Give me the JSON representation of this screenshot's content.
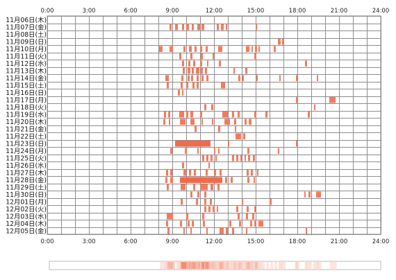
{
  "chart_data": {
    "type": "heatmap",
    "title": "",
    "xlabel": "",
    "ylabel": "",
    "x_ticks": [
      "0:00",
      "3:00",
      "6:00",
      "9:00",
      "12:00",
      "15:00",
      "18:00",
      "21:00",
      "24:00"
    ],
    "x_range_hours": [
      0,
      24
    ],
    "grid": true,
    "colors": {
      "activity": "#f47a5c",
      "activity_dense": "#f26a4c",
      "grid": "#8c8c8c",
      "summary_border": "#bbbbbb"
    },
    "days": [
      {
        "label": "11月06日(木)",
        "sessions": []
      },
      {
        "label": "11月07日(金)",
        "sessions": [
          [
            8.8,
            8.95
          ],
          [
            9.2,
            9.4
          ],
          [
            9.7,
            9.85
          ],
          [
            10.0,
            10.2
          ],
          [
            10.4,
            10.55
          ],
          [
            10.8,
            11.0
          ],
          [
            11.1,
            11.3
          ],
          [
            12.2,
            12.35
          ],
          [
            12.5,
            12.7
          ],
          [
            12.85,
            12.95
          ],
          [
            15.0,
            15.1
          ]
        ]
      },
      {
        "label": "11月08日(土)",
        "sessions": []
      },
      {
        "label": "11月09日(日)",
        "sessions": [
          [
            16.6,
            16.8
          ],
          [
            16.9,
            17.05
          ]
        ]
      },
      {
        "label": "11月10日(月)",
        "sessions": [
          [
            8.05,
            8.3
          ],
          [
            8.8,
            9.05
          ],
          [
            9.8,
            9.95
          ],
          [
            10.2,
            10.4
          ],
          [
            10.6,
            10.75
          ],
          [
            11.0,
            11.15
          ],
          [
            11.4,
            11.55
          ],
          [
            12.3,
            12.6
          ],
          [
            14.3,
            14.55
          ],
          [
            14.7,
            14.8
          ],
          [
            14.95,
            15.1
          ],
          [
            15.2,
            15.3
          ],
          [
            16.3,
            16.45
          ]
        ]
      },
      {
        "label": "11月11日(火)",
        "sessions": [
          [
            9.5,
            9.65
          ],
          [
            10.3,
            10.45
          ],
          [
            11.05,
            11.2
          ],
          [
            11.9,
            12.0
          ],
          [
            14.9,
            15.05
          ]
        ]
      },
      {
        "label": "11月12日(水)",
        "sessions": [
          [
            9.7,
            9.85
          ],
          [
            10.15,
            10.3
          ],
          [
            10.5,
            10.65
          ],
          [
            11.0,
            11.15
          ],
          [
            11.5,
            11.6
          ],
          [
            12.35,
            12.5
          ],
          [
            18.55,
            18.7
          ]
        ]
      },
      {
        "label": "11月13日(木)",
        "sessions": [
          [
            9.75,
            9.9
          ],
          [
            10.1,
            10.3
          ],
          [
            10.4,
            10.55
          ],
          [
            10.7,
            10.95
          ],
          [
            11.05,
            11.2
          ],
          [
            11.35,
            11.5
          ],
          [
            13.4,
            13.5
          ],
          [
            14.25,
            14.4
          ]
        ]
      },
      {
        "label": "11月14日(金)",
        "sessions": [
          [
            8.5,
            8.75
          ],
          [
            9.65,
            9.8
          ],
          [
            10.1,
            10.25
          ],
          [
            10.35,
            10.5
          ],
          [
            10.75,
            10.9
          ],
          [
            11.1,
            11.25
          ],
          [
            11.45,
            11.6
          ],
          [
            13.75,
            13.9
          ],
          [
            14.05,
            14.15
          ],
          [
            15.05,
            15.15
          ],
          [
            16.7,
            16.8
          ],
          [
            17.9,
            18.0
          ],
          [
            19.4,
            19.5
          ]
        ]
      },
      {
        "label": "11月15日(土)",
        "sessions": [
          [
            8.6,
            8.75
          ],
          [
            9.6,
            9.75
          ],
          [
            10.0,
            10.15
          ],
          [
            10.45,
            10.6
          ],
          [
            10.75,
            10.9
          ],
          [
            12.5,
            12.8
          ]
        ]
      },
      {
        "label": "11月16日(日)",
        "sessions": [
          [
            9.4,
            9.55
          ],
          [
            9.7,
            9.8
          ]
        ]
      },
      {
        "label": "11月17日(月)",
        "sessions": [
          [
            17.9,
            18.05
          ],
          [
            20.3,
            20.75
          ]
        ]
      },
      {
        "label": "11月18日(火)",
        "sessions": [
          [
            11.3,
            11.45
          ],
          [
            11.8,
            11.95
          ],
          [
            19.2,
            19.3
          ]
        ]
      },
      {
        "label": "11月19日(水)",
        "sessions": [
          [
            8.4,
            8.55
          ],
          [
            8.7,
            8.85
          ],
          [
            9.5,
            9.85
          ],
          [
            10.0,
            10.15
          ],
          [
            10.3,
            10.5
          ],
          [
            11.0,
            11.15
          ],
          [
            12.6,
            13.0
          ],
          [
            13.3,
            13.45
          ],
          [
            13.7,
            13.85
          ],
          [
            14.9,
            15.05
          ],
          [
            15.7,
            15.85
          ],
          [
            18.75,
            18.9
          ]
        ]
      },
      {
        "label": "11月20日(木)",
        "sessions": [
          [
            8.35,
            8.5
          ],
          [
            8.75,
            8.85
          ],
          [
            9.55,
            9.95
          ],
          [
            10.3,
            10.6
          ],
          [
            11.1,
            11.2
          ],
          [
            11.85,
            11.95
          ],
          [
            12.75,
            13.15
          ],
          [
            13.45,
            13.6
          ],
          [
            14.2,
            14.35
          ],
          [
            14.5,
            14.7
          ]
        ]
      },
      {
        "label": "11月21日(金)",
        "sessions": [
          [
            10.6,
            10.75
          ],
          [
            12.3,
            12.45
          ],
          [
            13.5,
            13.6
          ]
        ]
      },
      {
        "label": "11月22日(土)",
        "sessions": [
          [
            13.55,
            13.95
          ],
          [
            14.1,
            14.25
          ]
        ]
      },
      {
        "label": "11月23日(日)",
        "sessions": [
          [
            9.2,
            11.75
          ],
          [
            13.0,
            13.1
          ],
          [
            17.9,
            18.0
          ]
        ]
      },
      {
        "label": "11月24日(月)",
        "sessions": [
          [
            8.85,
            9.0
          ],
          [
            9.9,
            10.05
          ],
          [
            10.8,
            10.9
          ],
          [
            12.0,
            12.1
          ],
          [
            12.3,
            12.4
          ],
          [
            14.4,
            14.55
          ],
          [
            16.6,
            16.7
          ]
        ]
      },
      {
        "label": "11月25日(火)",
        "sessions": [
          [
            11.15,
            11.3
          ],
          [
            11.45,
            11.6
          ],
          [
            11.75,
            11.9
          ],
          [
            12.1,
            12.2
          ],
          [
            13.3,
            13.45
          ],
          [
            13.6,
            13.75
          ],
          [
            13.9,
            14.0
          ],
          [
            14.2,
            14.3
          ],
          [
            14.45,
            14.6
          ],
          [
            14.8,
            14.95
          ]
        ]
      },
      {
        "label": "11月26日(水)",
        "sessions": [
          [
            9.7,
            9.85
          ],
          [
            11.6,
            11.7
          ]
        ]
      },
      {
        "label": "11月27日(木)",
        "sessions": [
          [
            8.55,
            8.7
          ],
          [
            8.85,
            9.0
          ],
          [
            9.8,
            10.0
          ],
          [
            10.2,
            10.35
          ],
          [
            10.55,
            10.7
          ],
          [
            11.4,
            11.55
          ],
          [
            12.0,
            12.15
          ],
          [
            12.4,
            12.55
          ],
          [
            14.35,
            14.5
          ],
          [
            14.65,
            14.8
          ],
          [
            15.1,
            15.2
          ]
        ]
      },
      {
        "label": "11月28日(金)",
        "sessions": [
          [
            8.5,
            8.65
          ],
          [
            8.85,
            9.05
          ],
          [
            9.55,
            12.6
          ],
          [
            12.8,
            12.95
          ],
          [
            13.2,
            13.35
          ],
          [
            14.4,
            14.55
          ],
          [
            14.85,
            14.95
          ]
        ]
      },
      {
        "label": "11月29日(土)",
        "sessions": [
          [
            8.6,
            8.75
          ],
          [
            9.6,
            9.95
          ],
          [
            10.5,
            10.65
          ],
          [
            11.0,
            11.55
          ],
          [
            11.75,
            11.95
          ],
          [
            12.25,
            12.4
          ]
        ]
      },
      {
        "label": "11月30日(日)",
        "sessions": [
          [
            10.3,
            10.45
          ],
          [
            10.8,
            10.95
          ],
          [
            11.3,
            11.45
          ],
          [
            18.5,
            18.6
          ],
          [
            18.8,
            18.95
          ],
          [
            19.35,
            19.7
          ]
        ]
      },
      {
        "label": "12月01日(月)",
        "sessions": [
          [
            9.6,
            9.75
          ],
          [
            10.7,
            10.85
          ],
          [
            11.3,
            11.45
          ],
          [
            11.7,
            11.85
          ],
          [
            14.0,
            14.1
          ],
          [
            16.0,
            16.15
          ]
        ]
      },
      {
        "label": "12月02日(火)",
        "sessions": [
          [
            11.3,
            11.45
          ],
          [
            11.6,
            11.75
          ],
          [
            11.9,
            12.05
          ],
          [
            12.2,
            12.3
          ],
          [
            13.6,
            13.75
          ],
          [
            14.35,
            14.5
          ],
          [
            14.9,
            15.0
          ]
        ]
      },
      {
        "label": "12月03日(水)",
        "sessions": [
          [
            8.6,
            9.05
          ],
          [
            10.0,
            10.15
          ],
          [
            11.15,
            11.3
          ],
          [
            13.7,
            13.85
          ],
          [
            14.3,
            14.45
          ],
          [
            14.75,
            14.9
          ]
        ]
      },
      {
        "label": "12月04日(木)",
        "sessions": [
          [
            8.55,
            8.7
          ],
          [
            9.55,
            9.7
          ],
          [
            10.1,
            10.25
          ],
          [
            10.4,
            10.55
          ],
          [
            11.2,
            11.35
          ],
          [
            13.1,
            13.25
          ],
          [
            13.8,
            13.95
          ],
          [
            14.6,
            14.75
          ],
          [
            14.9,
            15.05
          ],
          [
            15.2,
            15.55
          ]
        ]
      },
      {
        "label": "12月05日(金)",
        "sessions": [
          [
            8.65,
            8.8
          ],
          [
            9.8,
            9.9
          ],
          [
            10.3,
            10.4
          ],
          [
            11.45,
            11.55
          ],
          [
            12.4,
            12.7
          ],
          [
            12.85,
            13.0
          ],
          [
            13.3,
            13.45
          ],
          [
            14.3,
            14.4
          ],
          [
            18.6,
            18.7
          ]
        ]
      }
    ]
  }
}
